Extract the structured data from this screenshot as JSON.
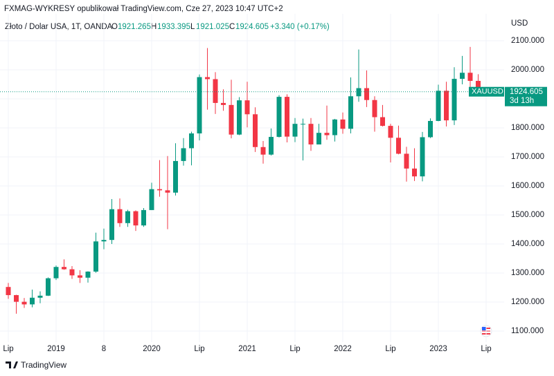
{
  "header": {
    "title": "FXMAG-WYKRESY opublikował TradingView.com, Cze 27, 2023 10:47 UTC+2"
  },
  "legend": {
    "symbol": "Złoto / Dolar USA, 1T, OANDA",
    "o_label": "O",
    "o": "1921.265",
    "h_label": "H",
    "h": "1933.395",
    "l_label": "L",
    "l": "1921.025",
    "c_label": "C",
    "c": "1924.605",
    "change": "+3.340 (+0.17%)"
  },
  "footer": {
    "brand": "TradingView"
  },
  "chart_data": {
    "type": "candlestick",
    "currency": "USD",
    "categories": [
      "Lip",
      null,
      null,
      null,
      null,
      null,
      "2019",
      null,
      null,
      null,
      null,
      null,
      "8",
      null,
      null,
      null,
      null,
      null,
      "2020",
      null,
      null,
      null,
      null,
      null,
      "Lip",
      null,
      null,
      null,
      null,
      null,
      "2021",
      null,
      null,
      null,
      null,
      null,
      "Lip",
      null,
      null,
      null,
      null,
      null,
      "2022",
      null,
      null,
      null,
      null,
      null,
      "Lip",
      null,
      null,
      null,
      null,
      null,
      "2023",
      null,
      null,
      null,
      null,
      null,
      "Lip"
    ],
    "open": [
      1252,
      1224,
      1201,
      1192,
      1215,
      1222,
      1282,
      1321,
      1313,
      1292,
      1284,
      1305,
      1409,
      1414,
      1520,
      1472,
      1513,
      1464,
      1517,
      1589,
      1585,
      1577,
      1686,
      1730,
      1781,
      1975,
      1968,
      1886,
      1879,
      1777,
      1895,
      1847,
      1734,
      1708,
      1769,
      1907,
      1770,
      1814,
      1814,
      1743,
      1783,
      1775,
      1829,
      1797,
      1909,
      1937,
      1896,
      1837,
      1807,
      1766,
      1711,
      1660,
      1633,
      1768,
      1824,
      1928,
      1826,
      1969,
      1990,
      1962,
      null
    ],
    "high": [
      1266,
      1225,
      1214,
      1243,
      1237,
      1285,
      1326,
      1347,
      1324,
      1310,
      1306,
      1439,
      1453,
      1555,
      1557,
      1518,
      1516,
      1524,
      1611,
      1689,
      1703,
      1747,
      1765,
      1787,
      1984,
      2075,
      1992,
      1933,
      1966,
      1906,
      1959,
      1871,
      1755,
      1798,
      1913,
      1916,
      1834,
      1832,
      1834,
      1814,
      1877,
      1831,
      1853,
      1974,
      2070,
      1998,
      1909,
      1879,
      1814,
      1808,
      1735,
      1730,
      1786,
      1833,
      1949,
      1959,
      2009,
      2048,
      2079,
      1985,
      null
    ],
    "low": [
      1211,
      1160,
      1180,
      1182,
      1196,
      1221,
      1276,
      1311,
      1280,
      1266,
      1267,
      1301,
      1382,
      1400,
      1459,
      1459,
      1445,
      1459,
      1517,
      1563,
      1451,
      1567,
      1670,
      1671,
      1757,
      1863,
      1848,
      1859,
      1764,
      1775,
      1802,
      1717,
      1677,
      1705,
      1767,
      1750,
      1751,
      1688,
      1721,
      1746,
      1759,
      1753,
      1780,
      1781,
      1890,
      1872,
      1787,
      1805,
      1681,
      1709,
      1615,
      1617,
      1616,
      1765,
      1823,
      1805,
      1810,
      1950,
      1932,
      1910,
      null
    ],
    "close": [
      1224,
      1201,
      1192,
      1215,
      1222,
      1282,
      1321,
      1313,
      1292,
      1284,
      1305,
      1409,
      1414,
      1520,
      1472,
      1513,
      1464,
      1517,
      1589,
      1585,
      1577,
      1686,
      1730,
      1781,
      1975,
      1968,
      1886,
      1879,
      1777,
      1895,
      1847,
      1734,
      1708,
      1769,
      1907,
      1770,
      1814,
      1814,
      1743,
      1783,
      1775,
      1829,
      1797,
      1909,
      1937,
      1896,
      1837,
      1807,
      1766,
      1711,
      1660,
      1633,
      1768,
      1824,
      1928,
      1826,
      1969,
      1990,
      1962,
      1919,
      null
    ],
    "up_color": "#089981",
    "down_color": "#f23645",
    "ylim": [
      1062,
      2193
    ],
    "yticks": [
      {
        "value": 1100,
        "label": "1100.000"
      },
      {
        "value": 1200,
        "label": "1200.000"
      },
      {
        "value": 1300,
        "label": "1300.000"
      },
      {
        "value": 1400,
        "label": "1400.000"
      },
      {
        "value": 1500,
        "label": "1500.000"
      },
      {
        "value": 1600,
        "label": "1600.000"
      },
      {
        "value": 1700,
        "label": "1700.000"
      },
      {
        "value": 1800,
        "label": "1800.000"
      },
      {
        "value": 1900,
        "label": "1900.000"
      },
      {
        "value": 2000,
        "label": "2000.000"
      },
      {
        "value": 2100,
        "label": "2100.000"
      }
    ],
    "grid": true,
    "last_price": {
      "symbol": "XAUUSD",
      "value": 1924.605,
      "countdown": "3d 13h"
    }
  }
}
